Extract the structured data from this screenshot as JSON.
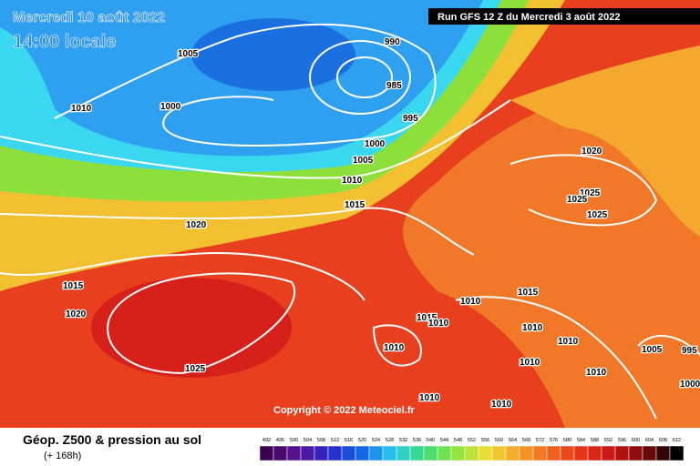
{
  "header": {
    "date": "Mercredi 10 août 2022",
    "time": "14:00 locale",
    "run": "Run GFS 12 Z du Mercredi 3 août 2022"
  },
  "map": {
    "isobar_labels": [
      1005,
      990,
      985,
      1010,
      1000,
      995,
      1000,
      1005,
      1020,
      1010,
      1025,
      1025,
      1015,
      1025,
      1020,
      1015,
      1015,
      1010,
      1020,
      1015,
      1010,
      1010,
      1010,
      1005,
      995,
      1010,
      1025,
      1010,
      1010,
      1010,
      1010,
      1000
    ],
    "copyright": "Copyright © 2022 Meteociel.fr"
  },
  "legend": {
    "title": "Géop. Z500 & pression au sol",
    "lead_time": "(+ 168h)",
    "scale": [
      492,
      496,
      500,
      504,
      508,
      512,
      516,
      520,
      524,
      528,
      532,
      536,
      540,
      544,
      548,
      552,
      556,
      560,
      564,
      568,
      572,
      576,
      580,
      584,
      588,
      592,
      596,
      600,
      604,
      608,
      612
    ]
  }
}
